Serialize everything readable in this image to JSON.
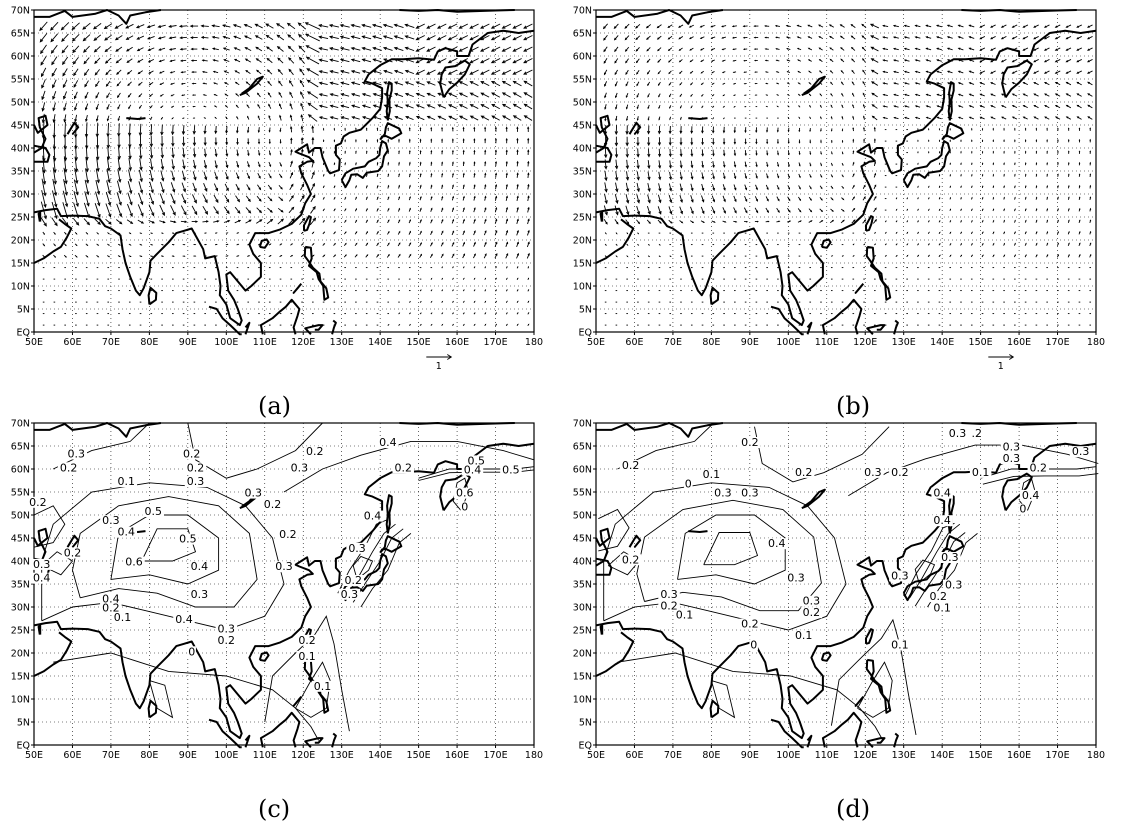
{
  "lon_labels": [
    "50E",
    "60E",
    "70E",
    "80E",
    "90E",
    "100E",
    "110E",
    "120E",
    "130E",
    "140E",
    "150E",
    "160E",
    "170E",
    "180"
  ],
  "lat_labels": [
    "EQ",
    "5N",
    "10N",
    "15N",
    "20N",
    "25N",
    "30N",
    "35N",
    "40N",
    "45N",
    "50N",
    "55N",
    "60N",
    "65N",
    "70N"
  ],
  "reference_vector_label": "1",
  "panels": [
    {
      "id": "a",
      "label": "(a)",
      "type": "vectors"
    },
    {
      "id": "b",
      "label": "(b)",
      "type": "vectors"
    },
    {
      "id": "c",
      "label": "(c)",
      "type": "contours",
      "contour_labels": [
        {
          "text": "0.3",
          "lon": 61,
          "lat": 62.5
        },
        {
          "text": "0.2",
          "lon": 59,
          "lat": 59.5
        },
        {
          "text": "0.2",
          "lon": 91,
          "lat": 62.5
        },
        {
          "text": "0.1",
          "lon": 74,
          "lat": 56.5
        },
        {
          "text": "0.2",
          "lon": 92,
          "lat": 59.5
        },
        {
          "text": "0.3",
          "lon": 92,
          "lat": 56.5
        },
        {
          "text": "0.3",
          "lon": 107,
          "lat": 54
        },
        {
          "text": "0.2",
          "lon": 112,
          "lat": 51.5
        },
        {
          "text": "0.3",
          "lon": 119,
          "lat": 59.5
        },
        {
          "text": "0.2",
          "lon": 123,
          "lat": 63
        },
        {
          "text": "0.4",
          "lon": 142,
          "lat": 65
        },
        {
          "text": "0.2",
          "lon": 51,
          "lat": 52
        },
        {
          "text": "0.5",
          "lon": 81,
          "lat": 50
        },
        {
          "text": "0.3",
          "lon": 70,
          "lat": 48
        },
        {
          "text": "0.4",
          "lon": 74,
          "lat": 45.5
        },
        {
          "text": "0.5",
          "lon": 90,
          "lat": 44
        },
        {
          "text": "0.2",
          "lon": 60,
          "lat": 41
        },
        {
          "text": "0.3",
          "lon": 52,
          "lat": 38.5
        },
        {
          "text": "0.4",
          "lon": 52,
          "lat": 35.5
        },
        {
          "text": "0.6",
          "lon": 76,
          "lat": 39
        },
        {
          "text": "0.4",
          "lon": 93,
          "lat": 38
        },
        {
          "text": "0.3",
          "lon": 93,
          "lat": 32
        },
        {
          "text": "0.2",
          "lon": 116,
          "lat": 45
        },
        {
          "text": "0.3",
          "lon": 115,
          "lat": 38
        },
        {
          "text": "0.4",
          "lon": 70,
          "lat": 31
        },
        {
          "text": "0.2",
          "lon": 70,
          "lat": 29
        },
        {
          "text": "0.1",
          "lon": 73,
          "lat": 27
        },
        {
          "text": "0.4",
          "lon": 89,
          "lat": 26.5
        },
        {
          "text": "0.3",
          "lon": 100,
          "lat": 24.5
        },
        {
          "text": "0.2",
          "lon": 100,
          "lat": 22
        },
        {
          "text": "0",
          "lon": 91,
          "lat": 19.5
        },
        {
          "text": "0.2",
          "lon": 121,
          "lat": 22
        },
        {
          "text": "0.1",
          "lon": 121,
          "lat": 18.5
        },
        {
          "text": "0.1",
          "lon": 125,
          "lat": 12
        },
        {
          "text": "0.4",
          "lon": 138,
          "lat": 49
        },
        {
          "text": "0.3",
          "lon": 134,
          "lat": 42
        },
        {
          "text": "0.2",
          "lon": 133,
          "lat": 35
        },
        {
          "text": "0.3",
          "lon": 132,
          "lat": 32
        },
        {
          "text": "0.2",
          "lon": 146,
          "lat": 59.5
        },
        {
          "text": "0.5",
          "lon": 165,
          "lat": 61
        },
        {
          "text": "0.4",
          "lon": 164,
          "lat": 59
        },
        {
          "text": "0.5",
          "lon": 174,
          "lat": 59
        },
        {
          "text": "0.6",
          "lon": 162,
          "lat": 54
        },
        {
          "text": "0",
          "lon": 162,
          "lat": 51
        }
      ]
    },
    {
      "id": "d",
      "label": "(d)",
      "type": "contours",
      "contour_labels": [
        {
          "text": "0.2",
          "lon": 90,
          "lat": 65
        },
        {
          "text": "0.2",
          "lon": 59,
          "lat": 60
        },
        {
          "text": "0.1",
          "lon": 80,
          "lat": 58
        },
        {
          "text": "0",
          "lon": 74,
          "lat": 56
        },
        {
          "text": "0.3",
          "lon": 83,
          "lat": 54
        },
        {
          "text": "0.3",
          "lon": 90,
          "lat": 54
        },
        {
          "text": "0.2",
          "lon": 104,
          "lat": 58.5
        },
        {
          "text": "0.3",
          "lon": 122,
          "lat": 58.5
        },
        {
          "text": "0.2",
          "lon": 129,
          "lat": 58.5
        },
        {
          "text": "0.3",
          "lon": 144,
          "lat": 67
        },
        {
          "text": ".2",
          "lon": 149,
          "lat": 67
        },
        {
          "text": "0.3",
          "lon": 158,
          "lat": 64
        },
        {
          "text": "0.3",
          "lon": 158,
          "lat": 61.5
        },
        {
          "text": "0.1",
          "lon": 150,
          "lat": 58.5
        },
        {
          "text": "0.2",
          "lon": 165,
          "lat": 59.5
        },
        {
          "text": "0.3",
          "lon": 176,
          "lat": 63
        },
        {
          "text": "0.4",
          "lon": 163,
          "lat": 53.5
        },
        {
          "text": "0",
          "lon": 161,
          "lat": 50.5
        },
        {
          "text": "0.4",
          "lon": 140,
          "lat": 54
        },
        {
          "text": "0.4",
          "lon": 140,
          "lat": 48
        },
        {
          "text": "0.2",
          "lon": 59,
          "lat": 39.5
        },
        {
          "text": "0.4",
          "lon": 97,
          "lat": 43
        },
        {
          "text": "0.3",
          "lon": 102,
          "lat": 35.5
        },
        {
          "text": "0.3",
          "lon": 129,
          "lat": 36
        },
        {
          "text": "0.3",
          "lon": 69,
          "lat": 32
        },
        {
          "text": "0.2",
          "lon": 69,
          "lat": 29.5
        },
        {
          "text": "0.1",
          "lon": 73,
          "lat": 27.5
        },
        {
          "text": "0.3",
          "lon": 106,
          "lat": 30.5
        },
        {
          "text": "0.2",
          "lon": 106,
          "lat": 28
        },
        {
          "text": "0.2",
          "lon": 90,
          "lat": 25.5
        },
        {
          "text": "0.1",
          "lon": 104,
          "lat": 23
        },
        {
          "text": "0",
          "lon": 91,
          "lat": 21
        },
        {
          "text": "0.1",
          "lon": 129,
          "lat": 21
        },
        {
          "text": "0.3",
          "lon": 142,
          "lat": 40
        },
        {
          "text": "0.3",
          "lon": 143,
          "lat": 34
        },
        {
          "text": "0.2",
          "lon": 139,
          "lat": 31.5
        },
        {
          "text": "0.1",
          "lon": 140,
          "lat": 29
        }
      ]
    }
  ]
}
